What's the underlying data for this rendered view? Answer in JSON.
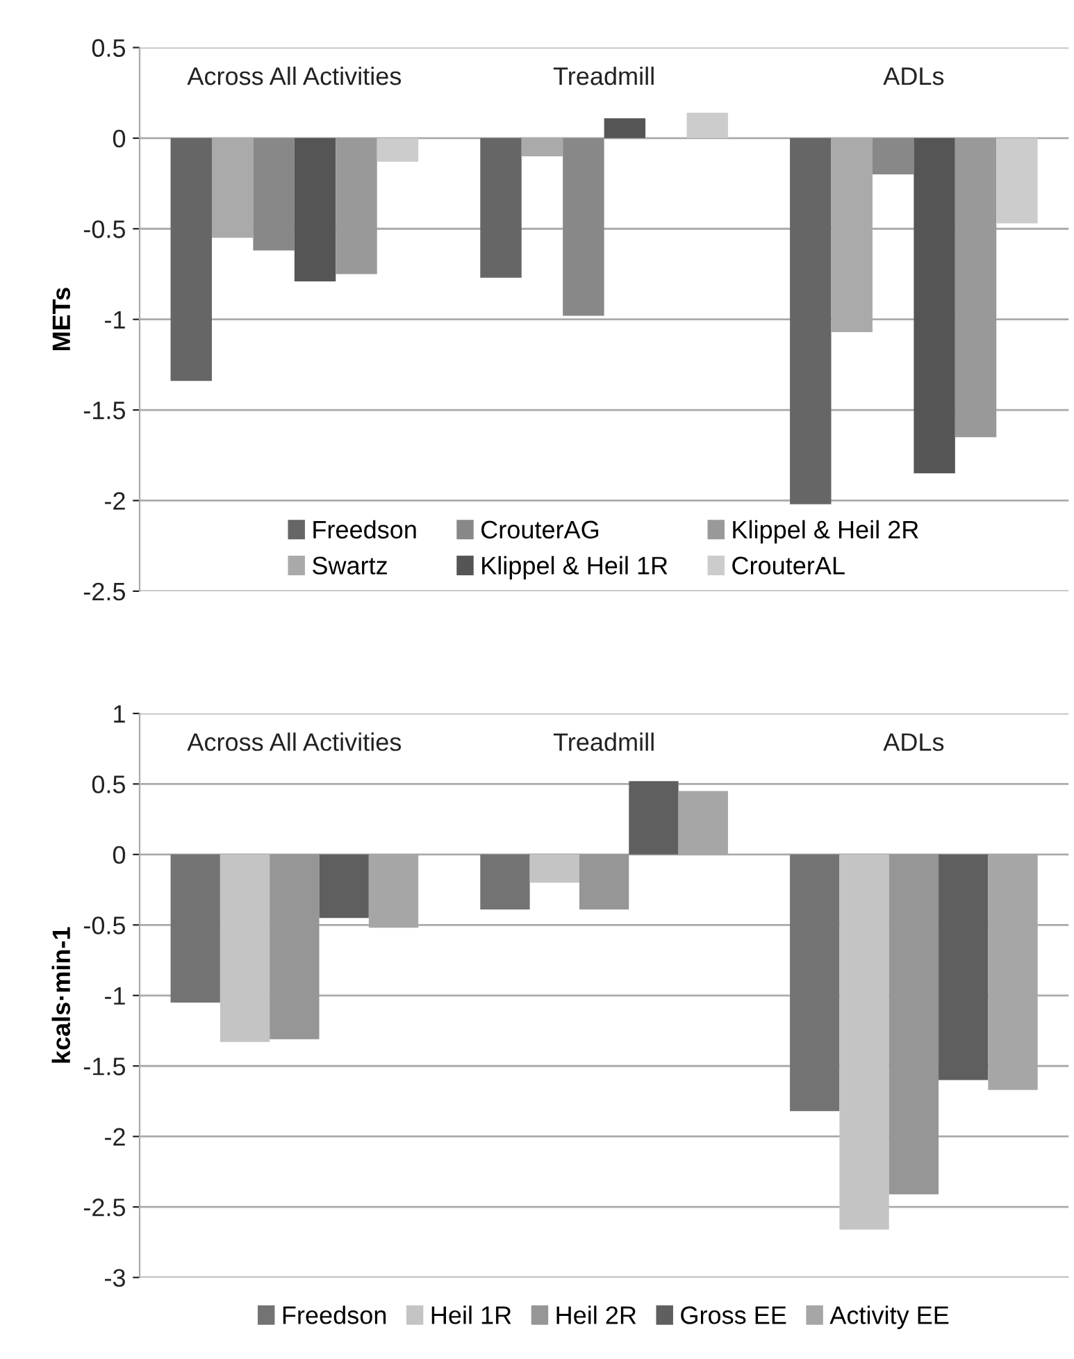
{
  "chart_data": [
    {
      "type": "bar",
      "ylabel": "METs",
      "categories": [
        "Across All Activities",
        "Treadmill",
        "ADLs"
      ],
      "series": [
        {
          "name": "Freedson",
          "color": "#666666",
          "values": [
            -1.34,
            -0.77,
            -2.02
          ]
        },
        {
          "name": "Swartz",
          "color": "#aaaaaa",
          "values": [
            -0.55,
            -0.1,
            -1.07
          ]
        },
        {
          "name": "CrouterAG",
          "color": "#888888",
          "values": [
            -0.62,
            -0.98,
            -0.2
          ]
        },
        {
          "name": "Klippel & Heil 1R",
          "color": "#555555",
          "values": [
            -0.79,
            0.11,
            -1.85
          ]
        },
        {
          "name": "Klippel & Heil 2R",
          "color": "#999999",
          "values": [
            -0.75,
            0,
            -1.65
          ]
        },
        {
          "name": "CrouterAL",
          "color": "#cccccc",
          "values": [
            -0.13,
            0.14,
            -0.47
          ]
        }
      ],
      "ylim": [
        -2.5,
        0.5
      ],
      "yticks": [
        {
          "value": -2.5,
          "label": "-2.5"
        },
        {
          "value": -2,
          "label": "-2"
        },
        {
          "value": -1.5,
          "label": "-1.5"
        },
        {
          "value": -1,
          "label": "-1"
        },
        {
          "value": -0.5,
          "label": "-0.5"
        },
        0,
        0.5
      ],
      "grid": "y",
      "legend": "lower center"
    },
    {
      "type": "bar",
      "ylabel": "kcals·min-1",
      "categories": [
        "Across All Activities",
        "Treadmill",
        "ADLs"
      ],
      "series": [
        {
          "name": "Freedson",
          "color": "#737373",
          "values": [
            -1.05,
            -0.39,
            -1.82
          ]
        },
        {
          "name": "Heil 1R",
          "color": "#c4c4c4",
          "values": [
            -1.33,
            -0.2,
            -2.66
          ]
        },
        {
          "name": "Heil 2R",
          "color": "#969696",
          "values": [
            -1.31,
            -0.39,
            -2.41
          ]
        },
        {
          "name": "Gross EE",
          "color": "#5f5f5f",
          "values": [
            -0.45,
            0.52,
            -1.6
          ]
        },
        {
          "name": "Activity EE",
          "color": "#a6a6a6",
          "values": [
            -0.52,
            0.45,
            -1.67
          ]
        }
      ],
      "ylim": [
        -3,
        1
      ],
      "yticks": [
        {
          "value": -3,
          "label": "-3"
        },
        {
          "value": -2.5,
          "label": "-2.5"
        },
        {
          "value": -2,
          "label": "-2"
        },
        {
          "value": -1.5,
          "label": "-1.5"
        },
        {
          "value": -1,
          "label": "-1"
        },
        {
          "value": -0.5,
          "label": "-0.5"
        },
        0,
        0.5,
        1
      ],
      "grid": "y",
      "legend": "bottom"
    }
  ]
}
